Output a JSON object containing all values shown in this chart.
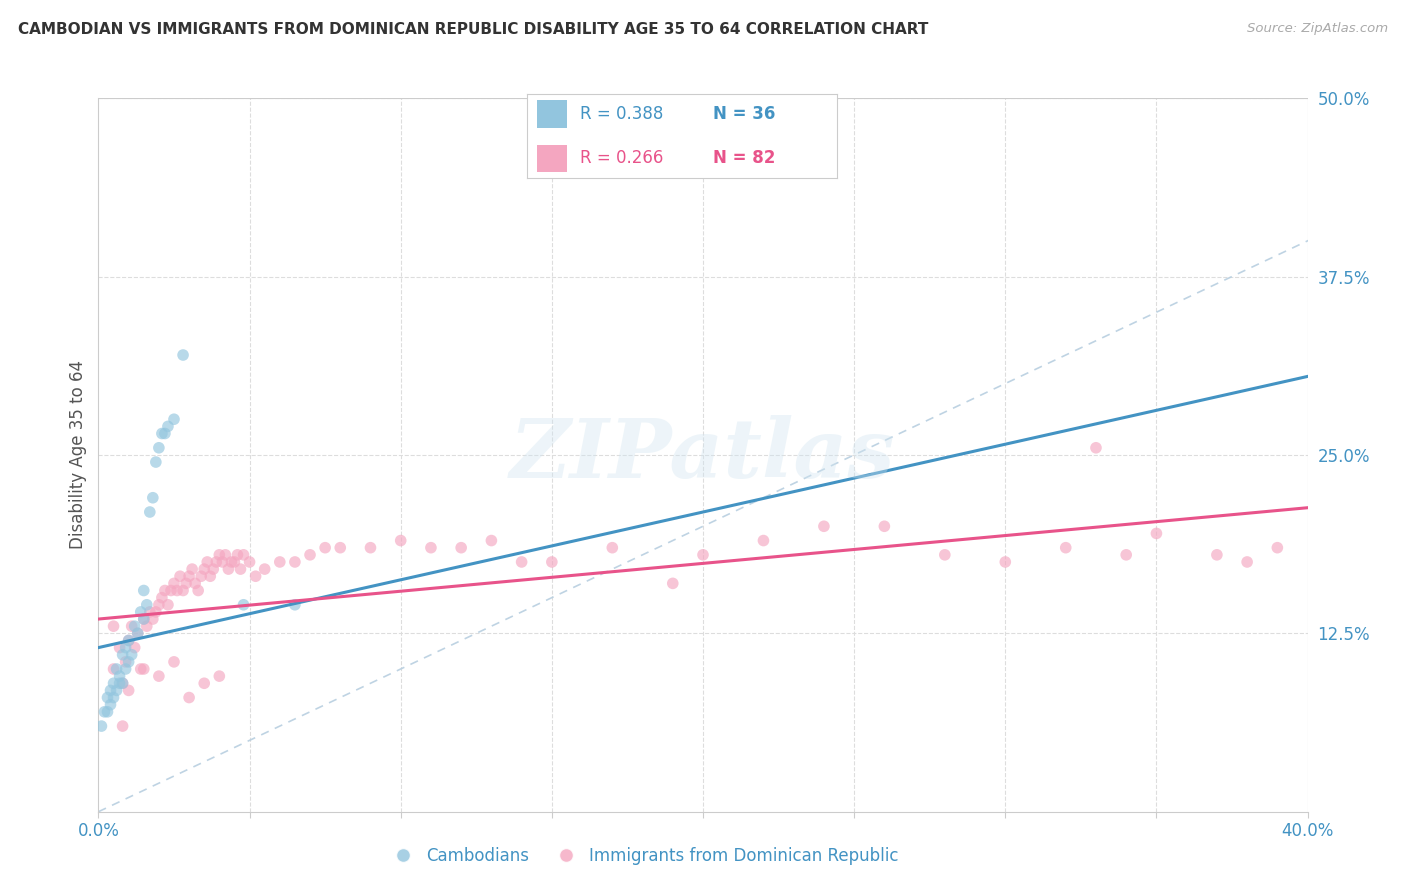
{
  "title": "CAMBODIAN VS IMMIGRANTS FROM DOMINICAN REPUBLIC DISABILITY AGE 35 TO 64 CORRELATION CHART",
  "source": "Source: ZipAtlas.com",
  "ylabel": "Disability Age 35 to 64",
  "xlim": [
    0.0,
    0.4
  ],
  "ylim": [
    0.0,
    0.5
  ],
  "blue_color": "#92c5de",
  "pink_color": "#f4a6c0",
  "blue_line_color": "#4393c3",
  "pink_line_color": "#e8538a",
  "diagonal_line_color": "#b8cfe0",
  "watermark": "ZIPatlas",
  "blue_line_x0": 0.0,
  "blue_line_y0": 0.115,
  "blue_line_x1": 0.4,
  "blue_line_y1": 0.305,
  "pink_line_x0": 0.0,
  "pink_line_y0": 0.135,
  "pink_line_x1": 0.4,
  "pink_line_y1": 0.213,
  "cambodians_x": [
    0.001,
    0.002,
    0.003,
    0.003,
    0.004,
    0.004,
    0.005,
    0.005,
    0.006,
    0.006,
    0.007,
    0.007,
    0.008,
    0.008,
    0.009,
    0.009,
    0.01,
    0.01,
    0.011,
    0.012,
    0.013,
    0.014,
    0.015,
    0.015,
    0.016,
    0.017,
    0.018,
    0.019,
    0.02,
    0.021,
    0.022,
    0.023,
    0.025,
    0.028,
    0.048,
    0.065
  ],
  "cambodians_y": [
    0.06,
    0.07,
    0.07,
    0.08,
    0.075,
    0.085,
    0.08,
    0.09,
    0.085,
    0.1,
    0.09,
    0.095,
    0.09,
    0.11,
    0.1,
    0.115,
    0.105,
    0.12,
    0.11,
    0.13,
    0.125,
    0.14,
    0.135,
    0.155,
    0.145,
    0.21,
    0.22,
    0.245,
    0.255,
    0.265,
    0.265,
    0.27,
    0.275,
    0.32,
    0.145,
    0.145
  ],
  "dominican_x": [
    0.005,
    0.007,
    0.008,
    0.009,
    0.01,
    0.011,
    0.012,
    0.013,
    0.014,
    0.015,
    0.016,
    0.017,
    0.018,
    0.019,
    0.02,
    0.021,
    0.022,
    0.023,
    0.024,
    0.025,
    0.026,
    0.027,
    0.028,
    0.029,
    0.03,
    0.031,
    0.032,
    0.033,
    0.034,
    0.035,
    0.036,
    0.037,
    0.038,
    0.039,
    0.04,
    0.041,
    0.042,
    0.043,
    0.044,
    0.045,
    0.046,
    0.047,
    0.048,
    0.05,
    0.052,
    0.055,
    0.06,
    0.065,
    0.07,
    0.075,
    0.08,
    0.09,
    0.1,
    0.11,
    0.12,
    0.13,
    0.14,
    0.15,
    0.17,
    0.19,
    0.2,
    0.22,
    0.24,
    0.26,
    0.28,
    0.3,
    0.32,
    0.33,
    0.34,
    0.35,
    0.37,
    0.38,
    0.39,
    0.005,
    0.008,
    0.01,
    0.015,
    0.02,
    0.025,
    0.03,
    0.035,
    0.04
  ],
  "dominican_y": [
    0.1,
    0.115,
    0.09,
    0.105,
    0.12,
    0.13,
    0.115,
    0.125,
    0.1,
    0.135,
    0.13,
    0.14,
    0.135,
    0.14,
    0.145,
    0.15,
    0.155,
    0.145,
    0.155,
    0.16,
    0.155,
    0.165,
    0.155,
    0.16,
    0.165,
    0.17,
    0.16,
    0.155,
    0.165,
    0.17,
    0.175,
    0.165,
    0.17,
    0.175,
    0.18,
    0.175,
    0.18,
    0.17,
    0.175,
    0.175,
    0.18,
    0.17,
    0.18,
    0.175,
    0.165,
    0.17,
    0.175,
    0.175,
    0.18,
    0.185,
    0.185,
    0.185,
    0.19,
    0.185,
    0.185,
    0.19,
    0.175,
    0.175,
    0.185,
    0.16,
    0.18,
    0.19,
    0.2,
    0.2,
    0.18,
    0.175,
    0.185,
    0.255,
    0.18,
    0.195,
    0.18,
    0.175,
    0.185,
    0.13,
    0.06,
    0.085,
    0.1,
    0.095,
    0.105,
    0.08,
    0.09,
    0.095
  ]
}
